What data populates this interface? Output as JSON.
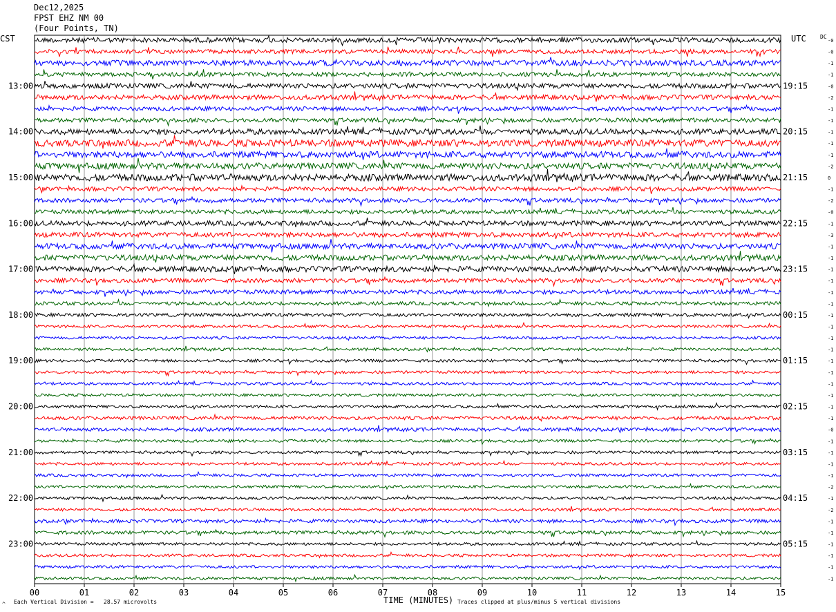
{
  "header": {
    "date": "Dec12,2025",
    "station": "FPST EHZ NM 00",
    "location": "(Four Points, TN)"
  },
  "left_tz": "CST",
  "right_tz": "UTC",
  "dc_label": "DC",
  "footer": {
    "vertical_division": "Each Vertical Division =   28.57 microvolts",
    "clip_note": "Traces clipped at plus/minus 5 vertical divisions",
    "corner_mark": "^"
  },
  "chart_data": {
    "type": "line",
    "chart_kind": "helicorder",
    "xlabel": "TIME (MINUTES)",
    "x_ticks": [
      "00",
      "01",
      "02",
      "03",
      "04",
      "05",
      "06",
      "07",
      "08",
      "09",
      "10",
      "11",
      "12",
      "13",
      "14",
      "15"
    ],
    "xlim": [
      0,
      15
    ],
    "trace_count": 48,
    "trace_colors": [
      "#000000",
      "#ff0000",
      "#0000ff",
      "#006400"
    ],
    "left_hour_labels": [
      "13:00",
      "14:00",
      "15:00",
      "16:00",
      "17:00",
      "18:00",
      "19:00",
      "20:00",
      "21:00",
      "22:00",
      "23:00"
    ],
    "right_hour_labels": [
      "19:15",
      "20:15",
      "21:15",
      "22:15",
      "23:15",
      "00:15",
      "01:15",
      "02:15",
      "03:15",
      "04:15",
      "05:15"
    ],
    "dc_offsets": [
      "-0",
      "-0",
      "-1",
      "-1",
      "-0",
      "-2",
      "-1",
      "-1",
      "-1",
      "-1",
      "-1",
      "-2",
      "0",
      "-1",
      "-2",
      "-0",
      "-1",
      "-3",
      "-1",
      "-1",
      "-1",
      "-1",
      "-1",
      "-1",
      "-1",
      "-1",
      "-1",
      "-1",
      "-1",
      "-1",
      "-1",
      "-1",
      "-1",
      "-1",
      "-0",
      "-1",
      "-1",
      "-1",
      "-1",
      "-2",
      "-1",
      "-2",
      "-1",
      "-1",
      "-1",
      "-1",
      "-1",
      "-1"
    ],
    "trace_amplitude": [
      3.5,
      3,
      4,
      3,
      3.5,
      3.5,
      3,
      3,
      4,
      5,
      4.5,
      4.5,
      5,
      3,
      3,
      3,
      3.5,
      3.5,
      4,
      4,
      4,
      3,
      3,
      2.5,
      2.5,
      2,
      2,
      2,
      2,
      2,
      2,
      2,
      2,
      2.5,
      2.5,
      2,
      2,
      2,
      2,
      2,
      2,
      2,
      2.5,
      2.5,
      2,
      2,
      2,
      2
    ]
  }
}
